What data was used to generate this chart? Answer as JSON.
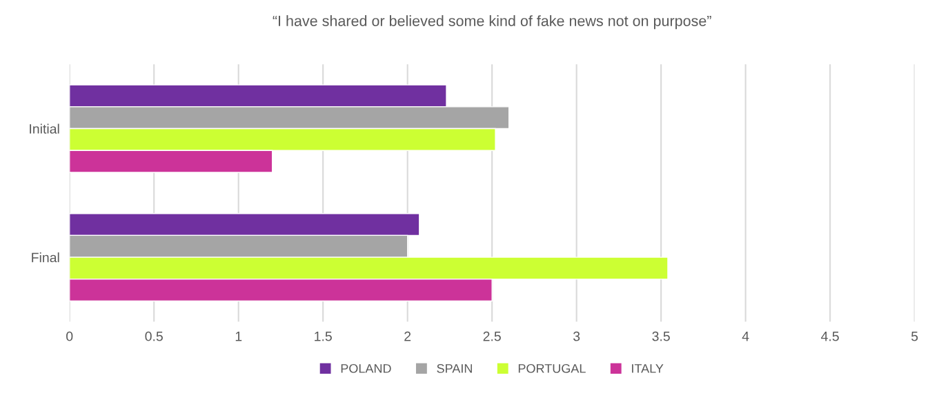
{
  "chart_data": {
    "type": "bar",
    "orientation": "horizontal",
    "title": "“I have shared or believed some kind of fake news not on purpose”",
    "categories": [
      "Initial",
      "Final"
    ],
    "series": [
      {
        "name": "POLAND",
        "color": "#7030a0",
        "values": [
          2.23,
          2.07
        ]
      },
      {
        "name": "SPAIN",
        "color": "#a5a5a5",
        "values": [
          2.6,
          2.0
        ]
      },
      {
        "name": "PORTUGAL",
        "color": "#ccff33",
        "values": [
          2.52,
          3.54
        ]
      },
      {
        "name": "ITALY",
        "color": "#cc3399",
        "values": [
          1.2,
          2.5
        ]
      }
    ],
    "xlim": [
      0,
      5
    ],
    "xticks": [
      0,
      {
        "value": 0.5,
        "label": "0.5"
      },
      1,
      {
        "value": 1.5,
        "label": "1.5"
      },
      2,
      {
        "value": 2.5,
        "label": "2.5"
      },
      3,
      {
        "value": 3.5,
        "label": "3.5"
      },
      4,
      {
        "value": 4.5,
        "label": "4.5"
      },
      5
    ],
    "grid": "x",
    "legend": "bottom"
  }
}
